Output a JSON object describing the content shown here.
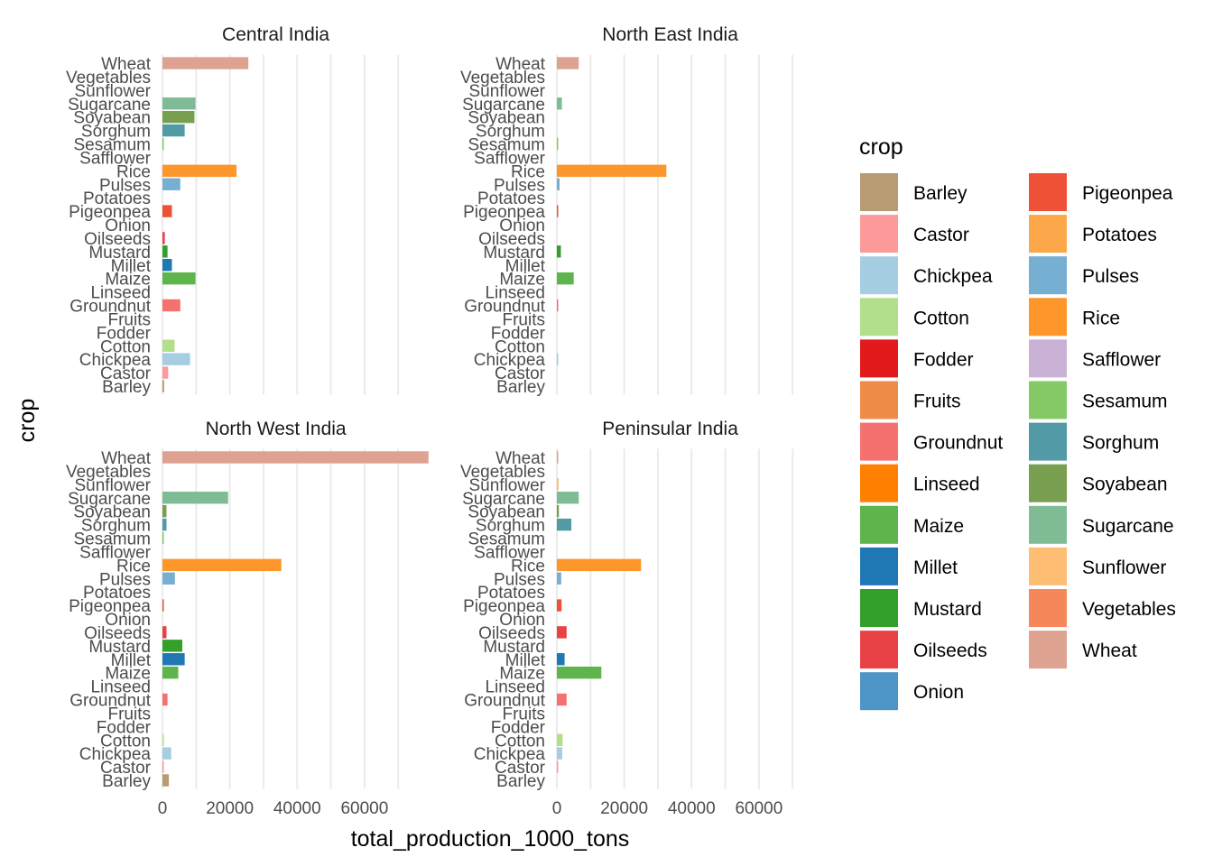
{
  "chart_data": {
    "type": "bar",
    "orientation": "horizontal",
    "xlabel": "total_production_1000_tons",
    "ylabel": "crop",
    "xlim": [
      0,
      70000
    ],
    "xticks": [
      0,
      20000,
      40000,
      60000
    ],
    "xtick_labels": [
      "0",
      "20000",
      "40000",
      "60000"
    ],
    "grid": true,
    "legend_title": "crop",
    "legend_position": "right",
    "categories": [
      "Barley",
      "Castor",
      "Chickpea",
      "Cotton",
      "Fodder",
      "Fruits",
      "Groundnut",
      "Linseed",
      "Maize",
      "Millet",
      "Mustard",
      "Oilseeds",
      "Onion",
      "Pigeonpea",
      "Potatoes",
      "Pulses",
      "Rice",
      "Safflower",
      "Sesamum",
      "Sorghum",
      "Soyabean",
      "Sugarcane",
      "Sunflower",
      "Vegetables",
      "Wheat"
    ],
    "colors": {
      "Barley": "#b89a73",
      "Castor": "#fb9a99",
      "Chickpea": "#a6cee3",
      "Cotton": "#b2df8a",
      "Fodder": "#e31a1c",
      "Fruits": "#ee8c47",
      "Groundnut": "#f4716f",
      "Linseed": "#ff7f00",
      "Maize": "#5db54b",
      "Millet": "#1f78b4",
      "Mustard": "#33a02c",
      "Oilseeds": "#e84146",
      "Onion": "#4d95c6",
      "Pigeonpea": "#ee5136",
      "Potatoes": "#fca84a",
      "Pulses": "#77afd3",
      "Rice": "#fd962b",
      "Safflower": "#cab2d6",
      "Sesamum": "#85c966",
      "Sorghum": "#519aa6",
      "Soyabean": "#789e50",
      "Sugarcane": "#7fbc96",
      "Sunflower": "#fdbd72",
      "Vegetables": "#f6875b",
      "Wheat": "#dea290"
    },
    "facets": [
      {
        "name": "Central India",
        "values": {
          "Barley": 500,
          "Castor": 1700,
          "Chickpea": 8200,
          "Cotton": 3600,
          "Fodder": 0,
          "Fruits": 0,
          "Groundnut": 5300,
          "Linseed": 0,
          "Maize": 9800,
          "Millet": 2800,
          "Mustard": 1500,
          "Oilseeds": 700,
          "Onion": 0,
          "Pigeonpea": 2800,
          "Potatoes": 0,
          "Pulses": 5300,
          "Rice": 22000,
          "Safflower": 0,
          "Sesamum": 300,
          "Sorghum": 6600,
          "Soyabean": 9500,
          "Sugarcane": 9800,
          "Sunflower": 0,
          "Vegetables": 0,
          "Wheat": 25500
        }
      },
      {
        "name": "North East India",
        "values": {
          "Barley": 0,
          "Castor": 0,
          "Chickpea": 100,
          "Cotton": 0,
          "Fodder": 0,
          "Fruits": 0,
          "Groundnut": 150,
          "Linseed": 0,
          "Maize": 5000,
          "Millet": 0,
          "Mustard": 1200,
          "Oilseeds": 0,
          "Onion": 0,
          "Pigeonpea": 200,
          "Potatoes": 0,
          "Pulses": 800,
          "Rice": 32500,
          "Safflower": 0,
          "Sesamum": 200,
          "Sorghum": 0,
          "Soyabean": 0,
          "Sugarcane": 1500,
          "Sunflower": 0,
          "Vegetables": 0,
          "Wheat": 6500
        }
      },
      {
        "name": "North West India",
        "values": {
          "Barley": 1900,
          "Castor": 300,
          "Chickpea": 2600,
          "Cotton": 400,
          "Fodder": 0,
          "Fruits": 0,
          "Groundnut": 1500,
          "Linseed": 0,
          "Maize": 4700,
          "Millet": 6600,
          "Mustard": 5900,
          "Oilseeds": 1200,
          "Onion": 0,
          "Pigeonpea": 300,
          "Potatoes": 0,
          "Pulses": 3700,
          "Rice": 35300,
          "Safflower": 0,
          "Sesamum": 300,
          "Sorghum": 1200,
          "Soyabean": 1200,
          "Sugarcane": 19500,
          "Sunflower": 0,
          "Vegetables": 0,
          "Wheat": 79000
        }
      },
      {
        "name": "Peninsular India",
        "values": {
          "Barley": 0,
          "Castor": 400,
          "Chickpea": 1600,
          "Cotton": 1700,
          "Fodder": 0,
          "Fruits": 0,
          "Groundnut": 2900,
          "Linseed": 0,
          "Maize": 13200,
          "Millet": 2300,
          "Mustard": 0,
          "Oilseeds": 2900,
          "Onion": 0,
          "Pigeonpea": 1400,
          "Potatoes": 0,
          "Pulses": 1300,
          "Rice": 25000,
          "Safflower": 0,
          "Sesamum": 0,
          "Sorghum": 4300,
          "Soyabean": 600,
          "Sugarcane": 6500,
          "Sunflower": 500,
          "Vegetables": 0,
          "Wheat": 300
        }
      }
    ]
  }
}
